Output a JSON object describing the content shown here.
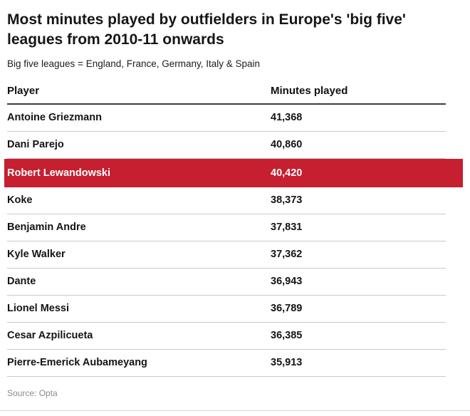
{
  "header": {
    "title": "Most minutes played by outfielders in Europe's 'big five' leagues from 2010-11 onwards",
    "subtitle": "Big five leagues = England, France, Germany, Italy & Spain"
  },
  "table": {
    "columns": [
      "Player",
      "Minutes played"
    ],
    "rows": [
      {
        "player": "Antoine Griezmann",
        "minutes": "41,368",
        "highlight": false
      },
      {
        "player": "Dani Parejo",
        "minutes": "40,860",
        "highlight": false
      },
      {
        "player": "Robert Lewandowski",
        "minutes": "40,420",
        "highlight": true
      },
      {
        "player": "Koke",
        "minutes": "38,373",
        "highlight": false
      },
      {
        "player": "Benjamin Andre",
        "minutes": "37,831",
        "highlight": false
      },
      {
        "player": "Kyle Walker",
        "minutes": "37,362",
        "highlight": false
      },
      {
        "player": "Dante",
        "minutes": "36,943",
        "highlight": false
      },
      {
        "player": "Lionel Messi",
        "minutes": "36,789",
        "highlight": false
      },
      {
        "player": "Cesar Azpilicueta",
        "minutes": "36,385",
        "highlight": false
      },
      {
        "player": "Pierre-Emerick Aubameyang",
        "minutes": "35,913",
        "highlight": false
      }
    ]
  },
  "footer": {
    "source": "Source: Opta"
  },
  "colors": {
    "highlight": "#c51f30",
    "highlight_text": "#ffffff",
    "header_rule": "#3b3b3b",
    "row_rule": "#c9c9c9"
  },
  "chart_data": {
    "type": "table",
    "title": "Most minutes played by outfielders in Europe's 'big five' leagues from 2010-11 onwards",
    "subtitle": "Big five leagues = England, France, Germany, Italy & Spain",
    "columns": [
      "Player",
      "Minutes played"
    ],
    "rows": [
      [
        "Antoine Griezmann",
        41368
      ],
      [
        "Dani Parejo",
        40860
      ],
      [
        "Robert Lewandowski",
        40420
      ],
      [
        "Koke",
        38373
      ],
      [
        "Benjamin Andre",
        37831
      ],
      [
        "Kyle Walker",
        37362
      ],
      [
        "Dante",
        36943
      ],
      [
        "Lionel Messi",
        36789
      ],
      [
        "Cesar Azpilicueta",
        36385
      ],
      [
        "Pierre-Emerick Aubameyang",
        35913
      ]
    ],
    "highlighted_row": "Robert Lewandowski",
    "source": "Source: Opta"
  }
}
